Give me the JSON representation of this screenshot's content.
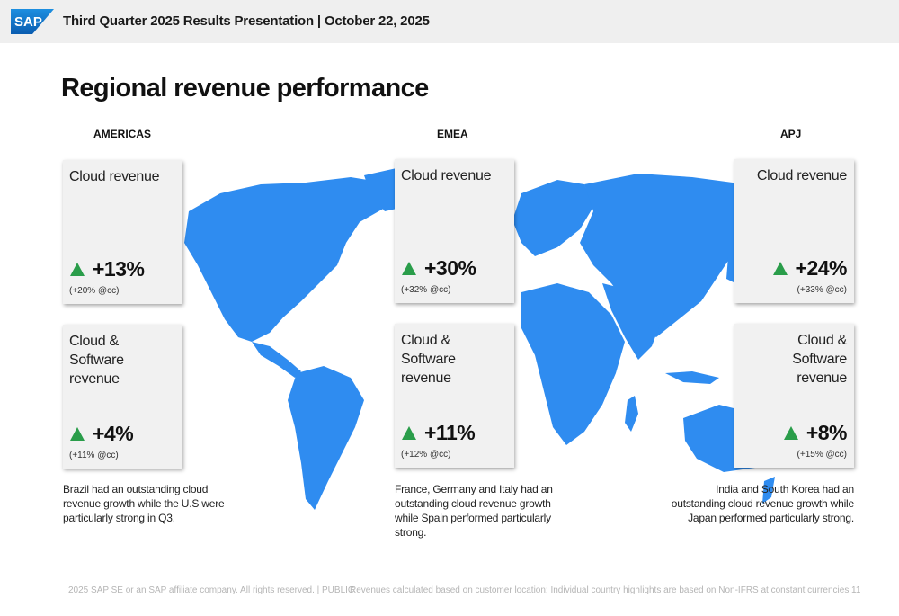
{
  "header": {
    "logo_text": "SAP",
    "title": "Third Quarter 2025 Results Presentation | October 22, 2025"
  },
  "page_title": "Regional revenue performance",
  "regions": {
    "americas": {
      "label": "AMERICAS",
      "cloud": {
        "title": "Cloud revenue",
        "value": "+13%",
        "cc": "(+20% @cc)"
      },
      "cloud_software": {
        "title": "Cloud & Software revenue",
        "value": "+4%",
        "cc": "(+11% @cc)"
      },
      "note": "Brazil had an outstanding  cloud revenue growth while the U.S were particularly strong in Q3."
    },
    "emea": {
      "label": "EMEA",
      "cloud": {
        "title": "Cloud revenue",
        "value": "+30%",
        "cc": "(+32% @cc)"
      },
      "cloud_software": {
        "title": "Cloud & Software revenue",
        "value": "+11%",
        "cc": "(+12% @cc)"
      },
      "note": "France, Germany and Italy had an outstanding cloud revenue growth while Spain performed particularly strong."
    },
    "apj": {
      "label": "APJ",
      "cloud": {
        "title": "Cloud revenue",
        "value": "+24%",
        "cc": "(+33% @cc)"
      },
      "cloud_software": {
        "title": "Cloud & Software revenue",
        "value": "+8%",
        "cc": "(+15% @cc)"
      },
      "note": "India and South Korea had an outstanding cloud revenue growth while Japan performed particularly strong."
    }
  },
  "footer": {
    "copyright": "2025 SAP SE or an SAP affiliate company. All rights reserved.  | PUBLIC",
    "disclaimer": "Revenues calculated based on customer location; Individual country highlights are based on Non-IFRS at constant currencies",
    "page_number": "11"
  },
  "colors": {
    "map": "#2f8cf0",
    "up_arrow": "#2a9d4a",
    "logo": "#1a73c8"
  }
}
